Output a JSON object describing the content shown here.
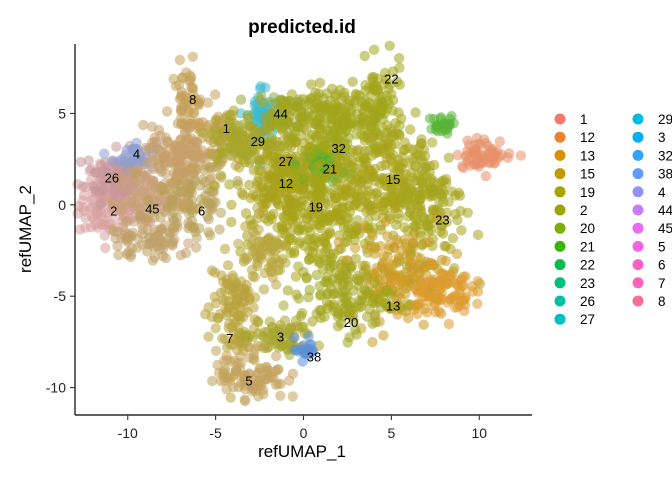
{
  "chart_data": {
    "type": "scatter",
    "title": "predicted.id",
    "xlabel": "refUMAP_1",
    "ylabel": "refUMAP_2",
    "xlim": [
      -13,
      13
    ],
    "ylim": [
      -11.5,
      8.8
    ],
    "xticks": [
      -10,
      -5,
      0,
      5,
      10
    ],
    "yticks": [
      -10,
      -5,
      0,
      5
    ],
    "grid": false,
    "legend_position": "right",
    "legend": [
      {
        "name": "1",
        "color": "#F8766D"
      },
      {
        "name": "12",
        "color": "#EA8331"
      },
      {
        "name": "13",
        "color": "#D89000"
      },
      {
        "name": "15",
        "color": "#C09B00"
      },
      {
        "name": "19",
        "color": "#A3A500"
      },
      {
        "name": "2",
        "color": "#9BA700"
      },
      {
        "name": "20",
        "color": "#7CAE00"
      },
      {
        "name": "21",
        "color": "#39B600"
      },
      {
        "name": "22",
        "color": "#00BB4E"
      },
      {
        "name": "23",
        "color": "#00BF7D"
      },
      {
        "name": "26",
        "color": "#00C1A3"
      },
      {
        "name": "27",
        "color": "#00BFC4"
      },
      {
        "name": "29",
        "color": "#00BAE0"
      },
      {
        "name": "3",
        "color": "#00B0F6"
      },
      {
        "name": "32",
        "color": "#35A2FF"
      },
      {
        "name": "38",
        "color": "#619CFF"
      },
      {
        "name": "4",
        "color": "#9590FF"
      },
      {
        "name": "44",
        "color": "#C77CFF"
      },
      {
        "name": "45",
        "color": "#E76BF3"
      },
      {
        "name": "5",
        "color": "#F564E3"
      },
      {
        "name": "6",
        "color": "#FF61C3"
      },
      {
        "name": "7",
        "color": "#FF62BC"
      },
      {
        "name": "8",
        "color": "#FF6C91"
      }
    ],
    "cluster_labels": [
      {
        "label": "22",
        "x": 5.0,
        "y": 6.9
      },
      {
        "label": "8",
        "x": -6.3,
        "y": 5.8
      },
      {
        "label": "44",
        "x": -1.3,
        "y": 5.0
      },
      {
        "label": "1",
        "x": -4.4,
        "y": 4.2
      },
      {
        "label": "29",
        "x": -2.6,
        "y": 3.5
      },
      {
        "label": "32",
        "x": 2.0,
        "y": 3.1
      },
      {
        "label": "4",
        "x": -9.5,
        "y": 2.8
      },
      {
        "label": "27",
        "x": -1.0,
        "y": 2.4
      },
      {
        "label": "21",
        "x": 1.5,
        "y": 2.0
      },
      {
        "label": "26",
        "x": -10.9,
        "y": 1.5
      },
      {
        "label": "15",
        "x": 5.1,
        "y": 1.4
      },
      {
        "label": "12",
        "x": -1.0,
        "y": 1.2
      },
      {
        "label": "19",
        "x": 0.7,
        "y": -0.1
      },
      {
        "label": "2",
        "x": -10.8,
        "y": -0.3
      },
      {
        "label": "45",
        "x": -8.6,
        "y": -0.2
      },
      {
        "label": "6",
        "x": -5.8,
        "y": -0.3
      },
      {
        "label": "23",
        "x": 7.9,
        "y": -0.8
      },
      {
        "label": "13",
        "x": 5.1,
        "y": -5.5
      },
      {
        "label": "20",
        "x": 2.7,
        "y": -6.4
      },
      {
        "label": "7",
        "x": -4.2,
        "y": -7.3
      },
      {
        "label": "3",
        "x": -1.3,
        "y": -7.2
      },
      {
        "label": "38",
        "x": 0.6,
        "y": -8.3
      },
      {
        "label": "5",
        "x": -3.1,
        "y": -9.6
      }
    ],
    "point_clouds": [
      {
        "cluster": "2",
        "x": -11.0,
        "y": 0.0,
        "sx": 0.9,
        "sy": 0.9,
        "n": 120,
        "color": "#D8A0A0"
      },
      {
        "cluster": "26",
        "x": -10.6,
        "y": 1.6,
        "sx": 0.9,
        "sy": 0.7,
        "n": 90,
        "color": "#C8989A"
      },
      {
        "cluster": "4",
        "x": -9.6,
        "y": 2.7,
        "sx": 0.6,
        "sy": 0.4,
        "n": 40,
        "color": "#8F9FD0"
      },
      {
        "cluster": "45",
        "x": -8.8,
        "y": 0.2,
        "sx": 1.0,
        "sy": 0.9,
        "n": 110,
        "color": "#C9A07A"
      },
      {
        "cluster": "6",
        "x": -6.4,
        "y": 0.5,
        "sx": 1.1,
        "sy": 1.2,
        "n": 130,
        "color": "#B8A057"
      },
      {
        "cluster": "8",
        "x": -6.6,
        "y": 5.0,
        "sx": 0.5,
        "sy": 1.3,
        "n": 80,
        "color": "#C4A15A"
      },
      {
        "cluster": "1",
        "x": -4.5,
        "y": 3.6,
        "sx": 0.9,
        "sy": 0.8,
        "n": 70,
        "color": "#C6A05C"
      },
      {
        "cluster": "29",
        "x": -2.4,
        "y": 4.8,
        "sx": 0.4,
        "sy": 0.9,
        "n": 50,
        "color": "#3ABCD0"
      },
      {
        "cluster": "44",
        "x": -1.2,
        "y": 5.1,
        "sx": 0.9,
        "sy": 0.6,
        "n": 60,
        "color": "#93A83C"
      },
      {
        "cluster": "27",
        "x": -1.0,
        "y": 2.4,
        "sx": 1.2,
        "sy": 1.0,
        "n": 140,
        "color": "#A6A320"
      },
      {
        "cluster": "12",
        "x": -1.2,
        "y": 0.6,
        "sx": 1.3,
        "sy": 1.2,
        "n": 150,
        "color": "#A9A11A"
      },
      {
        "cluster": "21",
        "x": 1.4,
        "y": 2.1,
        "sx": 0.5,
        "sy": 0.4,
        "n": 50,
        "color": "#3DB536"
      },
      {
        "cluster": "32",
        "x": 2.4,
        "y": 3.4,
        "sx": 1.4,
        "sy": 1.2,
        "n": 160,
        "color": "#9EA61A"
      },
      {
        "cluster": "22",
        "x": 4.3,
        "y": 5.5,
        "sx": 0.7,
        "sy": 1.1,
        "n": 80,
        "color": "#A3A51A"
      },
      {
        "cluster": "19",
        "x": 1.2,
        "y": -0.8,
        "sx": 1.8,
        "sy": 1.5,
        "n": 220,
        "color": "#A6A418"
      },
      {
        "cluster": "15",
        "x": 4.6,
        "y": 1.3,
        "sx": 1.5,
        "sy": 1.5,
        "n": 170,
        "color": "#AAA219"
      },
      {
        "cluster": "23",
        "x": 7.2,
        "y": 0.0,
        "sx": 1.0,
        "sy": 2.0,
        "n": 140,
        "color": "#A6A41E"
      },
      {
        "cluster": "13",
        "x": 5.4,
        "y": -3.9,
        "sx": 1.4,
        "sy": 1.2,
        "n": 160,
        "color": "#C99A22"
      },
      {
        "cluster": "20",
        "x": 2.3,
        "y": -5.0,
        "sx": 1.3,
        "sy": 1.0,
        "n": 130,
        "color": "#A0A41E"
      },
      {
        "cluster": "7",
        "x": -4.0,
        "y": -5.8,
        "sx": 0.7,
        "sy": 1.6,
        "n": 110,
        "color": "#B8A23A"
      },
      {
        "cluster": "3",
        "x": -1.5,
        "y": -7.3,
        "sx": 1.0,
        "sy": 0.5,
        "n": 70,
        "color": "#A9A62E"
      },
      {
        "cluster": "38",
        "x": 0.1,
        "y": -7.9,
        "sx": 0.3,
        "sy": 0.3,
        "n": 20,
        "color": "#5B8FD8"
      },
      {
        "cluster": "5",
        "x": -3.0,
        "y": -9.3,
        "sx": 1.0,
        "sy": 0.7,
        "n": 90,
        "color": "#C2A35C"
      },
      {
        "cluster": "extra",
        "x": 10.3,
        "y": 2.8,
        "sx": 0.8,
        "sy": 0.4,
        "n": 60,
        "color": "#E8906A"
      },
      {
        "cluster": "extra",
        "x": 8.0,
        "y": 4.3,
        "sx": 0.4,
        "sy": 0.3,
        "n": 25,
        "color": "#55B436"
      },
      {
        "cluster": "extra",
        "x": 7.7,
        "y": -4.7,
        "sx": 0.9,
        "sy": 0.6,
        "n": 80,
        "color": "#DD9A2E"
      },
      {
        "cluster": "extra",
        "x": -3.8,
        "y": 3.5,
        "sx": 0.8,
        "sy": 0.8,
        "n": 70,
        "color": "#A7A628"
      },
      {
        "cluster": "extra",
        "x": -7.3,
        "y": 2.6,
        "sx": 0.9,
        "sy": 0.8,
        "n": 80,
        "color": "#C79E6A"
      },
      {
        "cluster": "extra",
        "x": 1.5,
        "y": 5.1,
        "sx": 1.6,
        "sy": 0.6,
        "n": 100,
        "color": "#A3A41C"
      },
      {
        "cluster": "extra",
        "x": -2.3,
        "y": -2.8,
        "sx": 0.8,
        "sy": 0.8,
        "n": 60,
        "color": "#B8A640"
      },
      {
        "cluster": "extra",
        "x": -8.8,
        "y": -2.0,
        "sx": 1.2,
        "sy": 0.5,
        "n": 60,
        "color": "#BFA068"
      }
    ]
  }
}
